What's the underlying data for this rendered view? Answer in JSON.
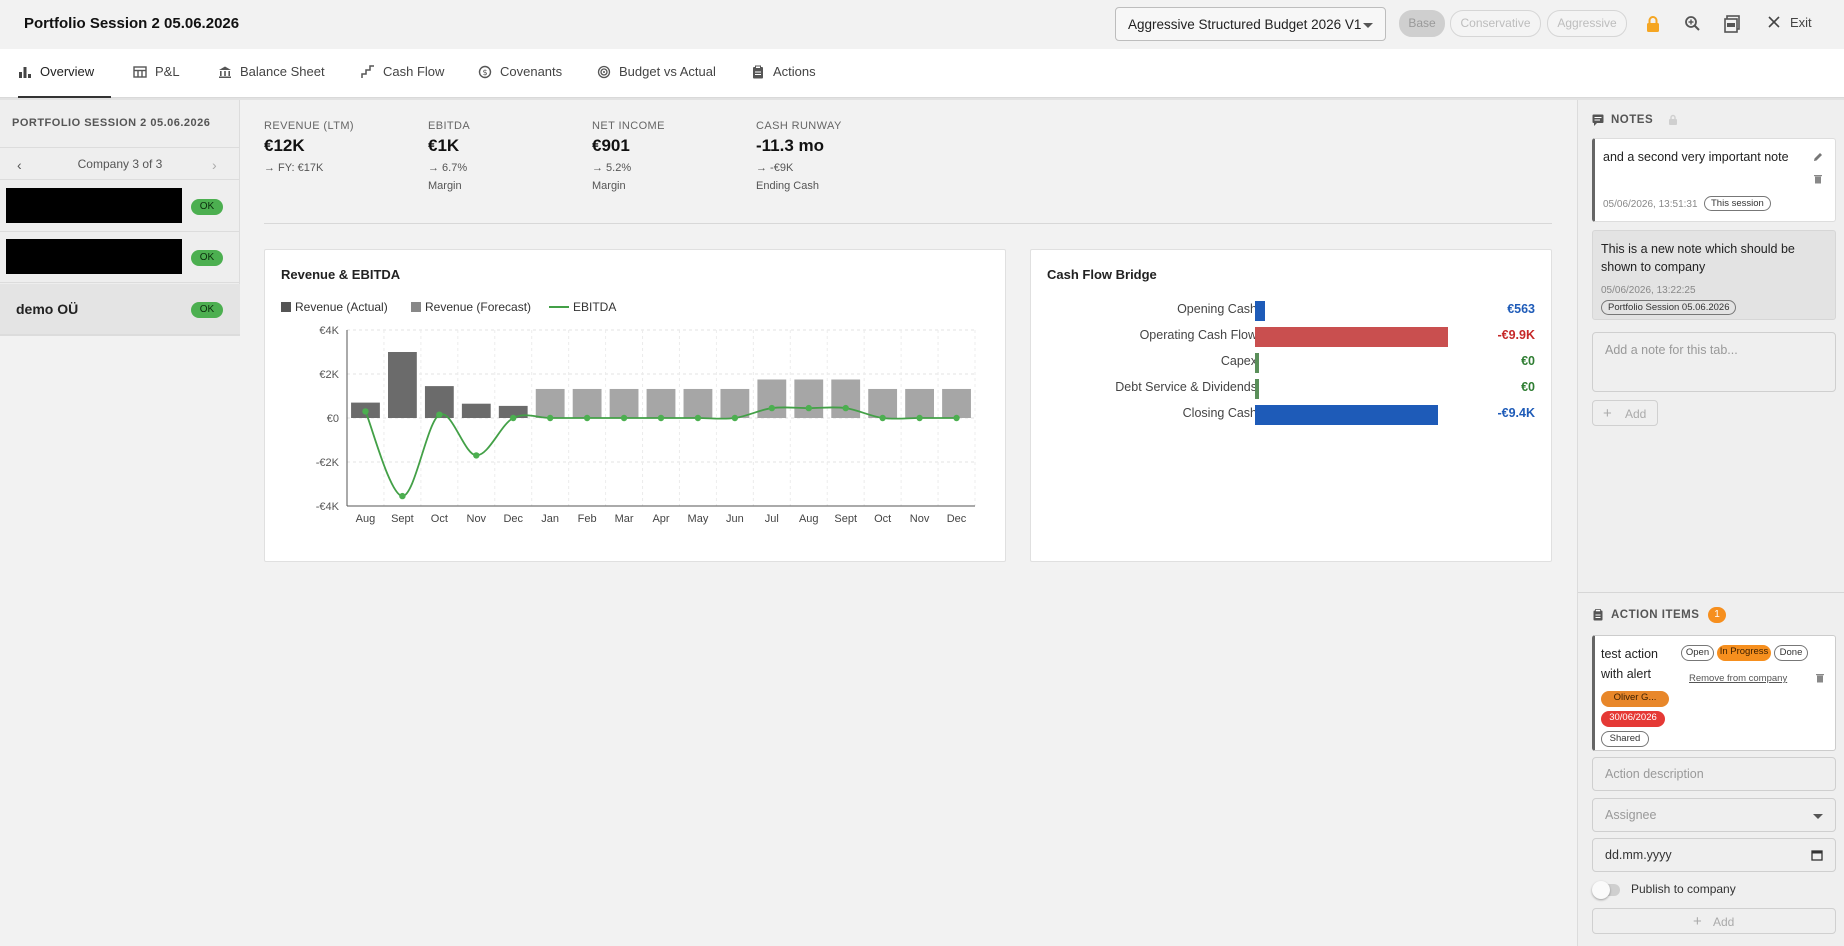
{
  "header": {
    "title": "Portfolio Session 2 05.06.2026",
    "budget_select": "Aggressive Structured Budget 2026 V1",
    "scenarios": [
      "Base",
      "Conservative",
      "Aggressive"
    ],
    "exit_label": "Exit",
    "lock_color": "#f5a623"
  },
  "tabs": [
    {
      "label": "Overview",
      "icon": "bar-chart-icon"
    },
    {
      "label": "P&L",
      "icon": "table-icon"
    },
    {
      "label": "Balance Sheet",
      "icon": "bank-icon"
    },
    {
      "label": "Cash Flow",
      "icon": "stairs-icon"
    },
    {
      "label": "Covenants",
      "icon": "shield-money-icon"
    },
    {
      "label": "Budget vs Actual",
      "icon": "target-icon"
    },
    {
      "label": "Actions",
      "icon": "clipboard-icon"
    }
  ],
  "sidebar": {
    "title": "PORTFOLIO SESSION 2 05.06.2026",
    "nav_prev": "‹",
    "nav_next": "›",
    "nav_count": "Company 3 of 3",
    "companies": [
      {
        "name": "",
        "status": "OK",
        "redacted": true
      },
      {
        "name": "",
        "status": "OK",
        "redacted": true
      },
      {
        "name": "demo OÜ",
        "status": "OK",
        "redacted": false
      }
    ]
  },
  "kpis": [
    {
      "label": "REVENUE (LTM)",
      "value": "€12K",
      "sub": "→ FY: €17K",
      "note": ""
    },
    {
      "label": "EBITDA",
      "value": "€1K",
      "sub": "→ 6.7%",
      "note": "Margin"
    },
    {
      "label": "NET INCOME",
      "value": "€901",
      "sub": "→ 5.2%",
      "note": "Margin"
    },
    {
      "label": "CASH RUNWAY",
      "value": "-11.3 mo",
      "sub": "→ -€9K",
      "note": "Ending Cash"
    }
  ],
  "revenue_chart": {
    "title": "Revenue & EBITDA",
    "legend": [
      "Revenue (Actual)",
      "Revenue (Forecast)",
      "EBITDA"
    ]
  },
  "bridge": {
    "title": "Cash Flow Bridge"
  },
  "chart_data": [
    {
      "type": "bar",
      "title": "Revenue & EBITDA",
      "categories": [
        "Aug",
        "Sept",
        "Oct",
        "Nov",
        "Dec",
        "Jan",
        "Feb",
        "Mar",
        "Apr",
        "May",
        "Jun",
        "Jul",
        "Aug",
        "Sept",
        "Oct",
        "Nov",
        "Dec"
      ],
      "series": [
        {
          "name": "Revenue (Actual)",
          "kind": "bar",
          "color": "#6b6b6b",
          "values": [
            700,
            3000,
            1450,
            650,
            550,
            null,
            null,
            null,
            null,
            null,
            null,
            null,
            null,
            null,
            null,
            null,
            null
          ]
        },
        {
          "name": "Revenue (Forecast)",
          "kind": "bar",
          "color": "#a6a6a6",
          "values": [
            null,
            null,
            null,
            null,
            null,
            1320,
            1320,
            1320,
            1320,
            1320,
            1320,
            1750,
            1750,
            1750,
            1320,
            1320,
            1320
          ]
        },
        {
          "name": "EBITDA",
          "kind": "line",
          "color": "#43a047",
          "values": [
            300,
            -3550,
            150,
            -1700,
            0,
            0,
            0,
            0,
            0,
            0,
            0,
            450,
            450,
            450,
            0,
            0,
            0
          ]
        }
      ],
      "yticks": [
        "€4K",
        "€2K",
        "€0",
        "-€2K",
        "-€4K"
      ],
      "ylim": [
        -4000,
        4000
      ],
      "grid": true,
      "legend_position": "top-left"
    },
    {
      "type": "bar",
      "title": "Cash Flow Bridge",
      "orientation": "horizontal",
      "categories": [
        "Opening Cash",
        "Operating Cash Flow",
        "Capex",
        "Debt Service & Dividends",
        "Closing Cash"
      ],
      "values": [
        563,
        -9900,
        0,
        0,
        -9400
      ],
      "labels": [
        "€563",
        "-€9.9K",
        "€0",
        "€0",
        "-€9.4K"
      ],
      "colors": [
        "#1e5bb8",
        "#c94f4f",
        "#5a8f5a",
        "#5a8f5a",
        "#1e5bb8"
      ],
      "label_colors": [
        "#1e5bb8",
        "#c62828",
        "#2e7d32",
        "#2e7d32",
        "#1e5bb8"
      ]
    }
  ],
  "notes": {
    "title": "NOTES",
    "items": [
      {
        "text": "and a second very important note",
        "meta": "05/06/2026, 13:51:31",
        "tag": "This session"
      },
      {
        "text": "This is a new note which should be shown to company",
        "meta": "05/06/2026, 13:22:25",
        "tag": "Portfolio Session 05.06.2026"
      }
    ],
    "input_placeholder": "Add a note for this tab...",
    "add_label": "Add"
  },
  "actions": {
    "title": "ACTION ITEMS",
    "count": "1",
    "item": {
      "title": "test action with alert",
      "statuses": [
        "Open",
        "In Progress",
        "Done"
      ],
      "remove_label": "Remove from company",
      "assignee": "Oliver G...",
      "due": "30/06/2026",
      "shared": "Shared"
    },
    "description_placeholder": "Action description",
    "assignee_placeholder": "Assignee",
    "date_placeholder": "dd.mm.yyyy",
    "publish_label": "Publish to company",
    "add_label": "Add"
  }
}
